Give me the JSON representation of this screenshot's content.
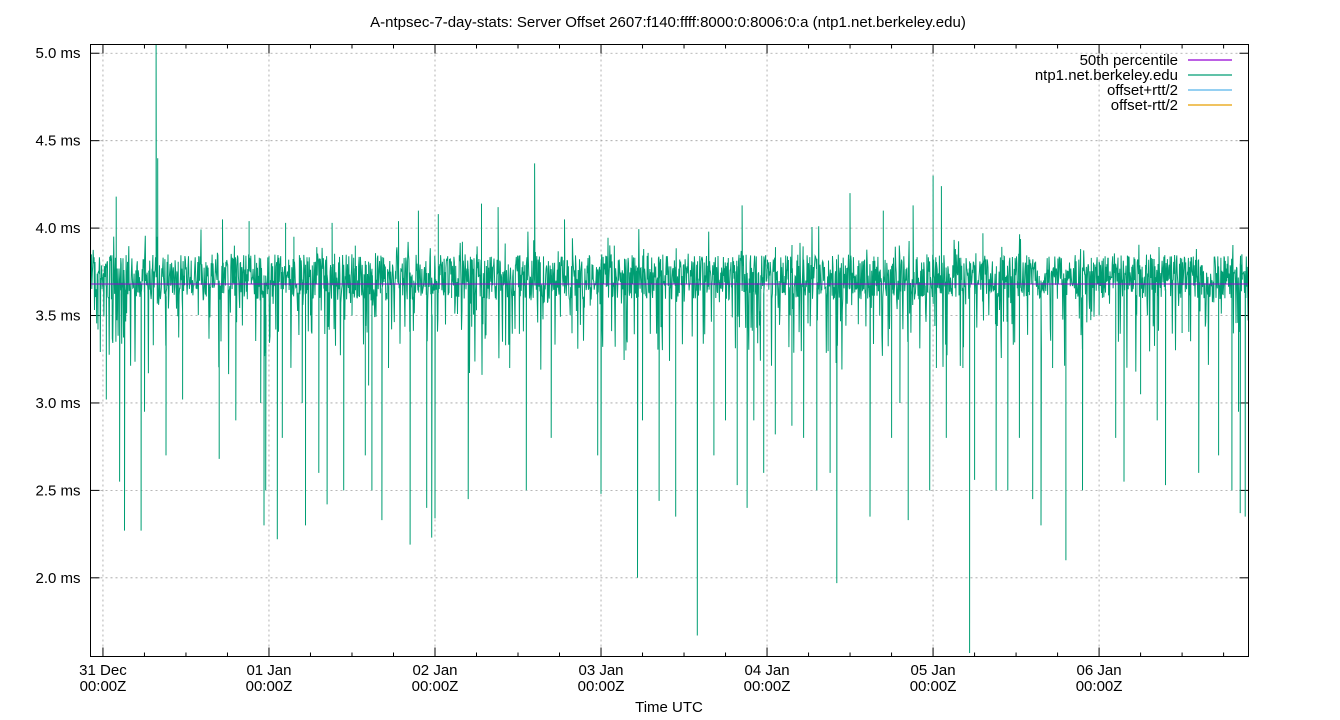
{
  "chart_data": {
    "type": "line",
    "title": "A-ntpsec-7-day-stats: Server Offset 2607:f140:ffff:8000:0:8006:0:a (ntp1.net.berkeley.edu)",
    "xlabel": "Time UTC",
    "ylabel": "",
    "x_unit": "days since 31 Dec 00:00Z",
    "xlim": [
      -0.075,
      6.9
    ],
    "ylim": [
      1.55,
      5.05
    ],
    "grid": true,
    "legend_position": "top-right",
    "x_ticks": [
      {
        "value": 0,
        "line1": "31 Dec",
        "line2": "00:00Z"
      },
      {
        "value": 1,
        "line1": "01 Jan",
        "line2": "00:00Z"
      },
      {
        "value": 2,
        "line1": "02 Jan",
        "line2": "00:00Z"
      },
      {
        "value": 3,
        "line1": "03 Jan",
        "line2": "00:00Z"
      },
      {
        "value": 4,
        "line1": "04 Jan",
        "line2": "00:00Z"
      },
      {
        "value": 5,
        "line1": "05 Jan",
        "line2": "00:00Z"
      },
      {
        "value": 6,
        "line1": "06 Jan",
        "line2": "00:00Z"
      }
    ],
    "y_ticks": [
      {
        "value": 2.0,
        "label": "2.0 ms"
      },
      {
        "value": 2.5,
        "label": "2.5 ms"
      },
      {
        "value": 3.0,
        "label": "3.0 ms"
      },
      {
        "value": 3.5,
        "label": "3.5 ms"
      },
      {
        "value": 4.0,
        "label": "4.0 ms"
      },
      {
        "value": 4.5,
        "label": "4.5 ms"
      },
      {
        "value": 5.0,
        "label": "5.0 ms"
      }
    ],
    "series": [
      {
        "name": "50th percentile",
        "color": "#9400d3",
        "kind": "constant",
        "value": 3.68
      },
      {
        "name": "ntp1.net.berkeley.edu",
        "color": "#009e73",
        "kind": "noisy-trace",
        "baseline": 3.72,
        "spikes": [
          [
            -0.03,
            3.42
          ],
          [
            0.02,
            3.02
          ],
          [
            0.1,
            2.55
          ],
          [
            0.13,
            2.27
          ],
          [
            0.08,
            4.18
          ],
          [
            0.23,
            2.27
          ],
          [
            0.25,
            2.95
          ],
          [
            0.32,
            5.07
          ],
          [
            0.33,
            4.4
          ],
          [
            0.38,
            2.7
          ],
          [
            0.48,
            3.02
          ],
          [
            0.7,
            2.68
          ],
          [
            0.72,
            4.05
          ],
          [
            0.8,
            2.9
          ],
          [
            0.88,
            4.04
          ],
          [
            0.95,
            3.0
          ],
          [
            0.97,
            2.3
          ],
          [
            0.98,
            2.5
          ],
          [
            1.0,
            3.84
          ],
          [
            1.05,
            2.22
          ],
          [
            1.08,
            2.8
          ],
          [
            1.1,
            4.03
          ],
          [
            1.15,
            3.95
          ],
          [
            1.2,
            3.0
          ],
          [
            1.22,
            2.3
          ],
          [
            1.25,
            3.5
          ],
          [
            1.3,
            2.6
          ],
          [
            1.35,
            2.42
          ],
          [
            1.38,
            4.03
          ],
          [
            1.45,
            2.5
          ],
          [
            1.5,
            3.5
          ],
          [
            1.52,
            3.9
          ],
          [
            1.58,
            2.7
          ],
          [
            1.6,
            3.1
          ],
          [
            1.62,
            2.5
          ],
          [
            1.68,
            2.33
          ],
          [
            1.72,
            3.2
          ],
          [
            1.78,
            4.04
          ],
          [
            1.85,
            2.19
          ],
          [
            1.9,
            4.1
          ],
          [
            1.95,
            2.4
          ],
          [
            1.98,
            2.23
          ],
          [
            2.0,
            2.34
          ],
          [
            2.02,
            4.08
          ],
          [
            2.1,
            3.6
          ],
          [
            2.2,
            2.45
          ],
          [
            2.25,
            3.53
          ],
          [
            2.28,
            4.14
          ],
          [
            2.38,
            4.12
          ],
          [
            2.45,
            3.2
          ],
          [
            2.55,
            2.5
          ],
          [
            2.6,
            4.37
          ],
          [
            2.7,
            2.8
          ],
          [
            2.78,
            4.05
          ],
          [
            2.98,
            2.7
          ],
          [
            3.0,
            2.48
          ],
          [
            3.08,
            3.9
          ],
          [
            3.15,
            3.3
          ],
          [
            3.22,
            2.0
          ],
          [
            3.25,
            2.9
          ],
          [
            3.35,
            2.44
          ],
          [
            3.45,
            2.35
          ],
          [
            3.58,
            1.67
          ],
          [
            3.68,
            2.7
          ],
          [
            3.75,
            2.9
          ],
          [
            3.82,
            2.53
          ],
          [
            3.85,
            4.13
          ],
          [
            3.88,
            2.4
          ],
          [
            3.92,
            2.9
          ],
          [
            3.98,
            2.6
          ],
          [
            4.05,
            2.82
          ],
          [
            4.1,
            3.68
          ],
          [
            4.15,
            2.87
          ],
          [
            4.22,
            2.8
          ],
          [
            4.3,
            2.5
          ],
          [
            4.38,
            2.6
          ],
          [
            4.42,
            1.97
          ],
          [
            4.5,
            4.2
          ],
          [
            4.55,
            3.45
          ],
          [
            4.62,
            2.35
          ],
          [
            4.7,
            4.1
          ],
          [
            4.75,
            2.8
          ],
          [
            4.8,
            3.0
          ],
          [
            4.85,
            2.33
          ],
          [
            4.88,
            4.13
          ],
          [
            4.98,
            2.5
          ],
          [
            5.0,
            4.3
          ],
          [
            5.02,
            3.2
          ],
          [
            5.05,
            4.24
          ],
          [
            5.08,
            2.8
          ],
          [
            5.18,
            3.2
          ],
          [
            5.22,
            1.57
          ],
          [
            5.25,
            2.56
          ],
          [
            5.3,
            3.97
          ],
          [
            5.38,
            2.5
          ],
          [
            5.45,
            2.5
          ],
          [
            5.52,
            2.8
          ],
          [
            5.6,
            2.45
          ],
          [
            5.65,
            2.3
          ],
          [
            5.72,
            3.2
          ],
          [
            5.8,
            2.1
          ],
          [
            5.9,
            2.5
          ],
          [
            6.0,
            3.5
          ],
          [
            6.1,
            2.8
          ],
          [
            6.15,
            2.55
          ],
          [
            6.25,
            3.05
          ],
          [
            6.35,
            2.9
          ],
          [
            6.4,
            2.53
          ],
          [
            6.5,
            3.4
          ],
          [
            6.6,
            2.6
          ],
          [
            6.72,
            2.7
          ],
          [
            6.8,
            2.5
          ],
          [
            6.85,
            2.37
          ],
          [
            6.88,
            2.35
          ],
          [
            6.84,
            2.95
          ],
          [
            6.86,
            3.85
          ]
        ]
      },
      {
        "name": "offset+rtt/2",
        "color": "#56b4e9",
        "kind": "none"
      },
      {
        "name": "offset-rtt/2",
        "color": "#e69f00",
        "kind": "none"
      }
    ]
  }
}
